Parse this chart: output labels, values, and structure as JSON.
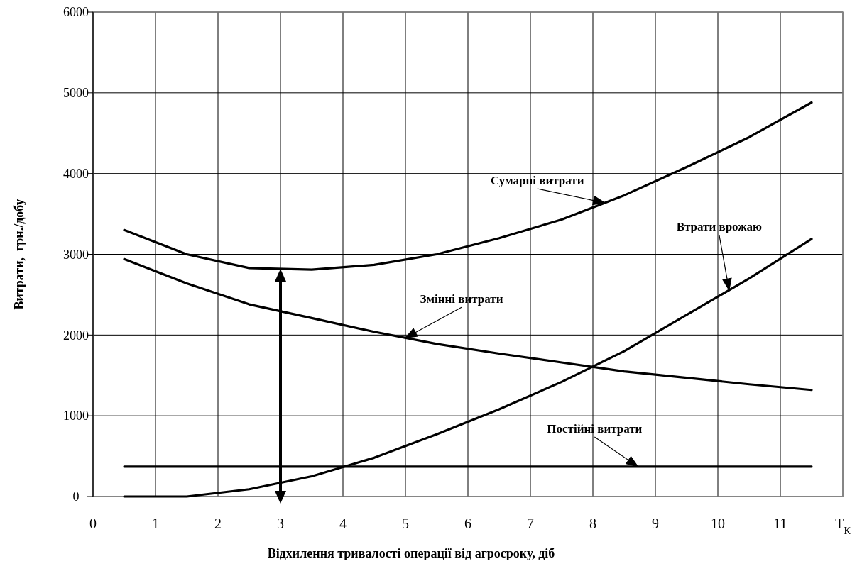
{
  "chart_data": {
    "type": "line",
    "xlabel": "Відхилення тривалості операції від агросроку, діб",
    "ylabel": "Витрати,  грн./добу",
    "x": [
      0.5,
      1.5,
      2.5,
      3.5,
      4.5,
      5.5,
      6.5,
      7.5,
      8.5,
      9.5,
      10.5,
      11.5
    ],
    "xlim": [
      0,
      12
    ],
    "xticks": [
      0,
      1,
      2,
      3,
      4,
      5,
      6,
      7,
      8,
      9,
      10,
      11,
      {
        "value": 12,
        "label": "T$_{К}$"
      }
    ],
    "ylim": [
      0,
      6000
    ],
    "yticks": [
      0,
      1000,
      2000,
      3000,
      4000,
      5000,
      6000
    ],
    "grid": true,
    "series": [
      {
        "name": "Сумарні витрати",
        "color": "#000000",
        "values": [
          3300,
          3000,
          2830,
          2810,
          2870,
          3000,
          3200,
          3430,
          3730,
          4080,
          4450,
          4880
        ]
      },
      {
        "name": "Змінні витрати",
        "color": "#000000",
        "values": [
          2940,
          2640,
          2380,
          2210,
          2040,
          1890,
          1770,
          1660,
          1550,
          1470,
          1390,
          1320
        ]
      },
      {
        "name": "Втрати врожаю",
        "color": "#000000",
        "values": [
          0,
          0,
          90,
          250,
          480,
          770,
          1080,
          1420,
          1800,
          2250,
          2700,
          3190
        ]
      },
      {
        "name": "Постійні витрати",
        "color": "#000000",
        "values": [
          370,
          370,
          370,
          370,
          370,
          370,
          370,
          370,
          370,
          370,
          370,
          370
        ]
      }
    ],
    "ref_lines": [
      {
        "axis": "x",
        "value": 3
      }
    ]
  }
}
